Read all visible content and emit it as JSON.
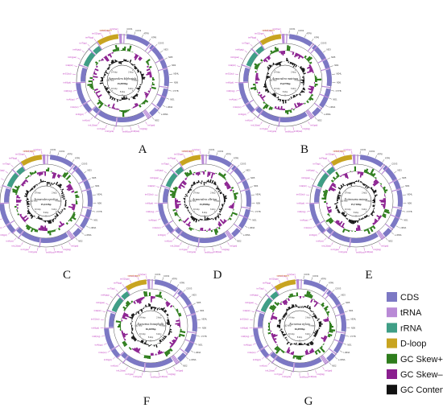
{
  "colors": {
    "cds": "#7c78c4",
    "trna": "#b98ad6",
    "rrna": "#3f9e86",
    "dloop": "#c8a420",
    "gc_skew_pos": "#2e7d1c",
    "gc_skew_neg": "#8a1f8f",
    "gc_content": "#111111",
    "gene_label": "#c03cc0"
  },
  "panels": [
    {
      "letter": "A",
      "species": "Acmaeodera kilphostuls",
      "size": "15,999bp"
    },
    {
      "letter": "B",
      "species": "Acmaeodera mateinas",
      "size": "15,679bp"
    },
    {
      "letter": "C",
      "species": "Acmaeodera prolixa",
      "size": "15,222bp"
    },
    {
      "letter": "D",
      "species": "Acmaeodera elbritus",
      "size": "15,998bp"
    },
    {
      "letter": "E",
      "species": "Ectinosoma mutans",
      "size": "15,716bp"
    },
    {
      "letter": "F",
      "species": "Eucnemus homaphylla",
      "size": "16,269bp"
    },
    {
      "letter": "G",
      "species": "Eucnemus stylata",
      "size": "16,099bp"
    }
  ],
  "legend": [
    {
      "key": "cds",
      "label": "CDS"
    },
    {
      "key": "trna",
      "label": "tRNA"
    },
    {
      "key": "rrna",
      "label": "rRNA"
    },
    {
      "key": "dloop",
      "label": "D-loop"
    },
    {
      "key": "gc_skew_pos",
      "label": "GC Skew+"
    },
    {
      "key": "gc_skew_neg",
      "label": "GC Skew–"
    },
    {
      "key": "gc_content",
      "label": "GC Content"
    }
  ],
  "labels": {
    "control_region": "control region",
    "inner_ticks": [
      "2 kbp",
      "4 kbp",
      "6 kbp",
      "8 kbp",
      "10 kbp",
      "12 kbp",
      "14 kbp"
    ],
    "genes": [
      "COX1",
      "COX2",
      "ATP8",
      "ATP6",
      "COX3",
      "ND3",
      "ND5",
      "ND4",
      "ND4L",
      "ND6",
      "CYTB",
      "ND1",
      "l-rRNA",
      "s-rRNA",
      "ND2",
      "trnI(gat)",
      "trnQ(ttg)",
      "trnM(cat)",
      "trnW(tca)",
      "trnC(gca)",
      "trnY(gta)",
      "trnL2(taa)",
      "trnK(ctt)",
      "trnD(gtc)",
      "trnG(tcc)",
      "trnA(tgc)",
      "trnR(tcg)",
      "trnN(gtt)",
      "trnS1(tct)",
      "trnE(ttc)",
      "trnF(gaa)",
      "trnH(gtg)",
      "trnT(tgt)",
      "trnP(tgg)",
      "trnS2(tga)",
      "trnL1(tag)",
      "trnV(tac)"
    ]
  }
}
